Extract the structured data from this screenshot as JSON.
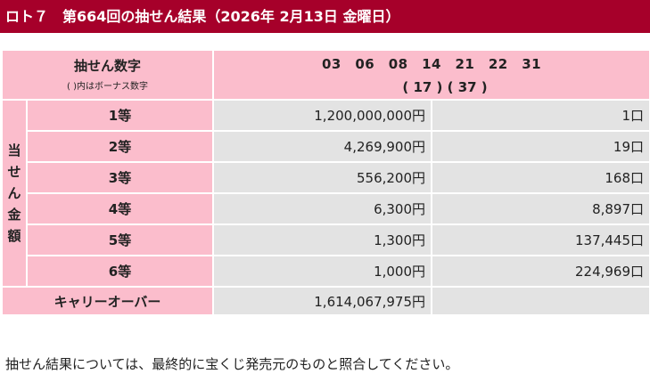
{
  "title": "ロト７　第664回の抽せん結果（2026年 2月13日 金曜日）",
  "draw": {
    "label": "抽せん数字",
    "bonus_note": "( )内はボーナス数字",
    "main_numbers": "03　06　08　14　21　22　31",
    "bonus_numbers": "( 17 ) ( 37 )"
  },
  "prize_section_label": [
    "当",
    "せ",
    "ん",
    "金",
    "額"
  ],
  "prizes": [
    {
      "rank": "1等",
      "amount": "1,200,000,000円",
      "count": "1口"
    },
    {
      "rank": "2等",
      "amount": "4,269,900円",
      "count": "19口"
    },
    {
      "rank": "3等",
      "amount": "556,200円",
      "count": "168口"
    },
    {
      "rank": "4等",
      "amount": "6,300円",
      "count": "8,897口"
    },
    {
      "rank": "5等",
      "amount": "1,300円",
      "count": "137,445口"
    },
    {
      "rank": "6等",
      "amount": "1,000円",
      "count": "224,969口"
    }
  ],
  "carryover": {
    "label": "キャリーオーバー",
    "amount": "1,614,067,975円"
  },
  "footnote": "抽せん結果については、最終的に宝くじ発売元のものと照合してください。",
  "colors": {
    "title_bg": "#a6002a",
    "pink_cell": "#fbbdcc",
    "grey_cell": "#e3e3e3"
  }
}
